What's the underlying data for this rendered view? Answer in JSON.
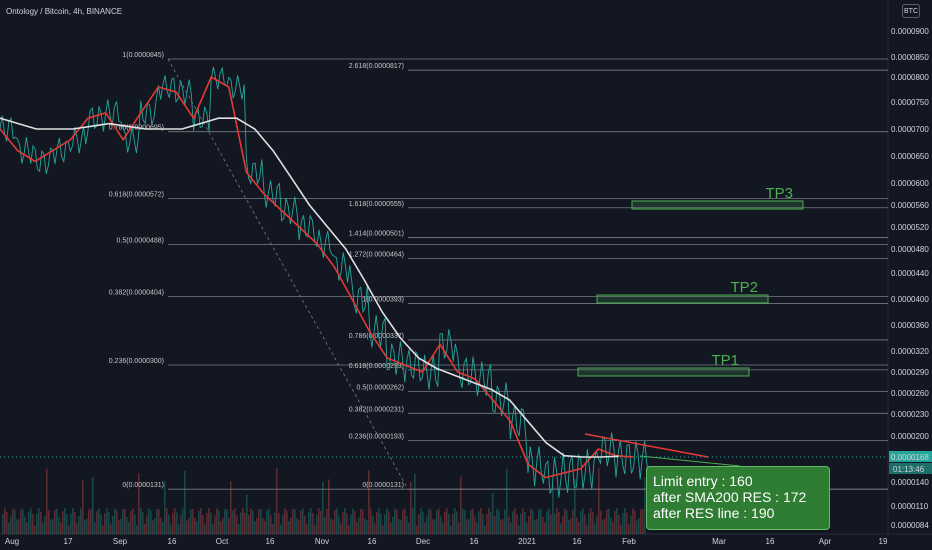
{
  "header": {
    "title": "Ontology / Bitcoin, 4h, BINANCE"
  },
  "toolbar": {
    "currency_button": "BTC"
  },
  "chart_data": {
    "type": "line",
    "title": "Ontology / Bitcoin, 4h, BINANCE",
    "ylabel": "BTC",
    "ylim": [
      8.2e-06,
      9.5e-05
    ],
    "price_ticks": [
      "0.0000900",
      "0.0000850",
      "0.0000800",
      "0.0000750",
      "0.0000700",
      "0.0000650",
      "0.0000600",
      "0.0000560",
      "0.0000520",
      "0.0000480",
      "0.0000440",
      "0.0000400",
      "0.0000360",
      "0.0000320",
      "0.0000290",
      "0.0000260",
      "0.0000230",
      "0.0000200",
      "0.0000168",
      "0.0000140",
      "0.0000110",
      "0.0000084"
    ],
    "price_tick_values": [
      90,
      85,
      80,
      75,
      70,
      65,
      60,
      56,
      52,
      48,
      44,
      40,
      36,
      32,
      29,
      26,
      23,
      20,
      16.8,
      14,
      11,
      8.4
    ],
    "price_tick_scale": 1e-06,
    "time_ticks": [
      "Aug",
      "17",
      "Sep",
      "16",
      "Oct",
      "16",
      "Nov",
      "16",
      "Dec",
      "16",
      "2021",
      "16",
      "Feb",
      "Mar",
      "16",
      "Apr",
      "19"
    ],
    "current_price": {
      "label": "0.0000168",
      "countdown": "01:13:46"
    },
    "fib_retracement_1": [
      {
        "label": "1(0.0000845)",
        "value": 84.5
      },
      {
        "label": "0.786(0.0000695)",
        "value": 69.5
      },
      {
        "label": "0.618(0.0000572)",
        "value": 57.2
      },
      {
        "label": "0.5(0.0000488)",
        "value": 48.8
      },
      {
        "label": "0.382(0.0000404)",
        "value": 40.4
      },
      {
        "label": "0.236(0.0000300)",
        "value": 30.0
      },
      {
        "label": "0(0.0000131)",
        "value": 13.1
      }
    ],
    "fib_retracement_2": [
      {
        "label": "2.618(0.0000817)",
        "value": 81.7
      },
      {
        "label": "1.618(0.0000555)",
        "value": 55.5
      },
      {
        "label": "1.414(0.0000501)",
        "value": 50.1
      },
      {
        "label": "1.272(0.0000464)",
        "value": 46.4
      },
      {
        "label": "1(0.0000393)",
        "value": 39.3
      },
      {
        "label": "0.786(0.0000337)",
        "value": 33.7
      },
      {
        "label": "0.618(0.0000293)",
        "value": 29.3
      },
      {
        "label": "0.5(0.0000262)",
        "value": 26.2
      },
      {
        "label": "0.382(0.0000231)",
        "value": 23.1
      },
      {
        "label": "0.236(0.0000193)",
        "value": 19.3
      },
      {
        "label": "0(0.0000131)",
        "value": 13.1
      }
    ],
    "targets": [
      {
        "name": "TP1",
        "price": 29.0
      },
      {
        "name": "TP2",
        "price": 40.0
      },
      {
        "name": "TP3",
        "price": 56.0
      }
    ],
    "series": [
      {
        "name": "",
        "color": "#e0e0e0",
        "values": [
          72,
          71,
          70,
          70,
          70,
          70.5,
          71,
          70.5,
          70,
          70,
          70,
          71,
          72,
          72,
          70,
          66,
          61,
          56,
          52,
          48,
          43,
          38,
          34,
          31,
          29.5,
          28.5,
          27.5,
          26.5,
          25,
          22,
          19,
          17,
          16.8,
          16.8,
          16.9
        ]
      },
      {
        "name": "",
        "color": "#e53935",
        "values": [
          70,
          66,
          64,
          66,
          68,
          72,
          73,
          68,
          73,
          78,
          77,
          72,
          80,
          78,
          62,
          58,
          55,
          52,
          49,
          45,
          40,
          35,
          31,
          30,
          29,
          33,
          29,
          28,
          25,
          22,
          16,
          14.5,
          15,
          15.5,
          18,
          17,
          16.8
        ]
      }
    ],
    "price_x": [
      0,
      4,
      8,
      12,
      16,
      20,
      24,
      28,
      32,
      36,
      40,
      44,
      48,
      52,
      56,
      60,
      64,
      68,
      72,
      76,
      80,
      84,
      88,
      92,
      96,
      100,
      104,
      108,
      112,
      116,
      120,
      124,
      128,
      132,
      136,
      140,
      144
    ],
    "colors": {
      "background": "#131722",
      "accent_green": "#4caf50",
      "trendline_red": "#e53935",
      "sma": "#e0e0e0"
    }
  },
  "callout": {
    "line1": "Limit entry : 160",
    "line2": "after SMA200 RES : 172",
    "line3": "after RES line : 190"
  }
}
